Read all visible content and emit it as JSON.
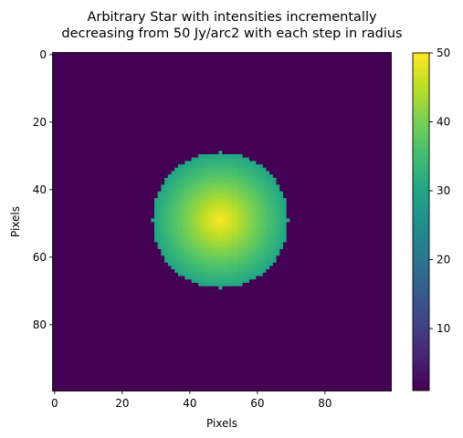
{
  "chart_data": {
    "type": "heatmap",
    "title": "Arbitrary Star with intensities incrementally\ndecreasing from 50 Jy/arc2 with each step in radius",
    "xlabel": "Pixels",
    "ylabel": "Pixels",
    "grid": false,
    "image_size": [
      100,
      100
    ],
    "xlim": [
      -0.5,
      99.5
    ],
    "ylim": [
      99.5,
      -0.5
    ],
    "x_ticks": [
      0,
      20,
      40,
      60,
      80
    ],
    "y_ticks": [
      0,
      20,
      40,
      60,
      80
    ],
    "star": {
      "center": [
        49,
        49
      ],
      "radius": 20,
      "peak_intensity": 50,
      "step_per_pixel_radius": 1,
      "background_intensity": 1
    },
    "colorbar": {
      "colormap": "viridis",
      "min": 1,
      "max": 50,
      "ticks": [
        10,
        20,
        30,
        40,
        50
      ],
      "location": "right"
    }
  }
}
